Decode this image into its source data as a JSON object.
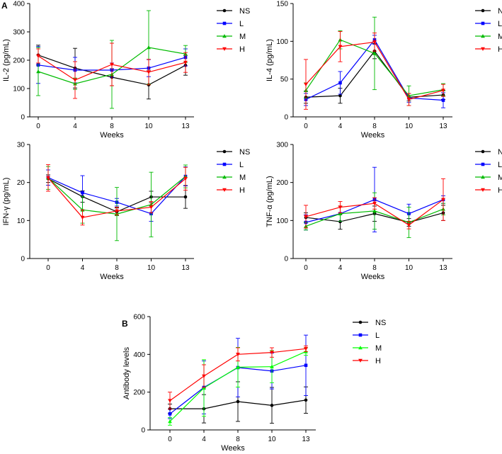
{
  "panel_letters": [
    "A",
    "B"
  ],
  "chart_data": [
    {
      "id": "il2",
      "panel": "A",
      "type": "line",
      "ylabel": "IL-2 (pg/mL)",
      "xlabel": "Weeks",
      "categories": [
        "0",
        "4",
        "8",
        "10",
        "13"
      ],
      "ylim": [
        0,
        400
      ],
      "yticks": [
        0,
        100,
        200,
        300,
        400
      ],
      "legend": "right",
      "series": [
        {
          "name": "NS",
          "color": "#000000",
          "marker": "circle",
          "values": [
            218,
            172,
            140,
            113,
            182
          ],
          "errors": [
            35,
            70,
            30,
            50,
            35
          ]
        },
        {
          "name": "L",
          "color": "#0000ff",
          "marker": "square",
          "values": [
            183,
            165,
            165,
            172,
            210
          ],
          "errors": [
            65,
            45,
            25,
            30,
            30
          ]
        },
        {
          "name": "M",
          "color": "#00bb00",
          "marker": "triangle-up",
          "values": [
            160,
            117,
            150,
            245,
            222
          ],
          "errors": [
            85,
            20,
            120,
            130,
            30
          ]
        },
        {
          "name": "H",
          "color": "#ff0000",
          "marker": "triangle-down",
          "values": [
            215,
            130,
            185,
            158,
            192
          ],
          "errors": [
            25,
            65,
            75,
            45,
            35
          ]
        }
      ]
    },
    {
      "id": "il4",
      "panel": "A",
      "type": "line",
      "ylabel": "IL-4 (pg/mL)",
      "xlabel": "Weeks",
      "categories": [
        "0",
        "4",
        "8",
        "10",
        "13"
      ],
      "ylim": [
        0,
        150
      ],
      "yticks": [
        0,
        50,
        100,
        150
      ],
      "legend": "right",
      "series": [
        {
          "name": "NS",
          "color": "#000000",
          "marker": "circle",
          "values": [
            26,
            28,
            87,
            26,
            29
          ],
          "errors": [
            8,
            10,
            10,
            5,
            6
          ]
        },
        {
          "name": "L",
          "color": "#0000ff",
          "marker": "square",
          "values": [
            23,
            45,
            102,
            25,
            22
          ],
          "errors": [
            8,
            15,
            6,
            6,
            10
          ]
        },
        {
          "name": "M",
          "color": "#00bb00",
          "marker": "triangle-up",
          "values": [
            35,
            102,
            84,
            28,
            36
          ],
          "errors": [
            10,
            12,
            48,
            13,
            8
          ]
        },
        {
          "name": "H",
          "color": "#ff0000",
          "marker": "triangle-down",
          "values": [
            43,
            93,
            99,
            23,
            35
          ],
          "errors": [
            33,
            20,
            12,
            8,
            8
          ]
        }
      ]
    },
    {
      "id": "ifng",
      "panel": "A",
      "type": "line",
      "ylabel": "IFN-γ (pg/mL)",
      "xlabel": "Weeks",
      "categories": [
        "0",
        "4",
        "8",
        "10",
        "13"
      ],
      "ylim": [
        0,
        30
      ],
      "yticks": [
        0,
        10,
        20,
        30
      ],
      "legend": "right",
      "series": [
        {
          "name": "NS",
          "color": "#000000",
          "marker": "circle",
          "values": [
            21,
            16.3,
            12.3,
            16.2,
            16.2
          ],
          "errors": [
            1,
            1.5,
            1,
            1.5,
            3
          ]
        },
        {
          "name": "L",
          "color": "#0000ff",
          "marker": "square",
          "values": [
            21.3,
            17.3,
            14.8,
            11.8,
            21.6
          ],
          "errors": [
            2,
            4.5,
            1,
            2,
            2.5
          ]
        },
        {
          "name": "M",
          "color": "#00bb00",
          "marker": "triangle-up",
          "values": [
            21.2,
            12.8,
            11.7,
            14.2,
            21.6
          ],
          "errors": [
            3,
            3.5,
            7,
            8.5,
            3
          ]
        },
        {
          "name": "H",
          "color": "#ff0000",
          "marker": "triangle-down",
          "values": [
            21.2,
            10.8,
            12.5,
            13.5,
            21
          ],
          "errors": [
            3.5,
            2,
            1,
            1.5,
            3
          ]
        }
      ]
    },
    {
      "id": "tnfa",
      "panel": "A",
      "type": "line",
      "ylabel": "TNF-α (pg/mL)",
      "xlabel": "Weeks",
      "categories": [
        "0",
        "4",
        "8",
        "10",
        "13"
      ],
      "ylim": [
        0,
        300
      ],
      "yticks": [
        0,
        100,
        200,
        300
      ],
      "legend": "right",
      "series": [
        {
          "name": "NS",
          "color": "#000000",
          "marker": "circle",
          "values": [
            108,
            97,
            118,
            95,
            120
          ],
          "errors": [
            12,
            20,
            20,
            10,
            20
          ]
        },
        {
          "name": "L",
          "color": "#0000ff",
          "marker": "square",
          "values": [
            95,
            118,
            155,
            118,
            155
          ],
          "errors": [
            20,
            20,
            85,
            25,
            10
          ]
        },
        {
          "name": "M",
          "color": "#00bb00",
          "marker": "triangle-up",
          "values": [
            85,
            118,
            125,
            95,
            130
          ],
          "errors": [
            10,
            20,
            48,
            40,
            15
          ]
        },
        {
          "name": "H",
          "color": "#ff0000",
          "marker": "triangle-down",
          "values": [
            110,
            135,
            145,
            88,
            155
          ],
          "errors": [
            30,
            15,
            15,
            10,
            55
          ]
        }
      ]
    },
    {
      "id": "antibody",
      "panel": "B",
      "type": "line",
      "ylabel": "Antibody levels",
      "xlabel": "Weeks",
      "categories": [
        "0",
        "4",
        "8",
        "10",
        "13"
      ],
      "ylim": [
        0,
        600
      ],
      "yticks": [
        0,
        200,
        400,
        600
      ],
      "legend": "right",
      "series": [
        {
          "name": "NS",
          "color": "#000000",
          "marker": "circle",
          "values": [
            112,
            112,
            150,
            130,
            158
          ],
          "errors": [
            25,
            75,
            105,
            95,
            70
          ]
        },
        {
          "name": "L",
          "color": "#0000ff",
          "marker": "square",
          "values": [
            85,
            225,
            330,
            312,
            342
          ],
          "errors": [
            25,
            140,
            155,
            95,
            160
          ]
        },
        {
          "name": "M",
          "color": "#00ff00",
          "marker": "triangle-up",
          "values": [
            45,
            222,
            332,
            335,
            415
          ],
          "errors": [
            20,
            150,
            105,
            85,
            20
          ]
        },
        {
          "name": "H",
          "color": "#ff0000",
          "marker": "triangle-down",
          "values": [
            155,
            285,
            400,
            410,
            430
          ],
          "errors": [
            45,
            60,
            35,
            25,
            15
          ]
        }
      ]
    }
  ]
}
